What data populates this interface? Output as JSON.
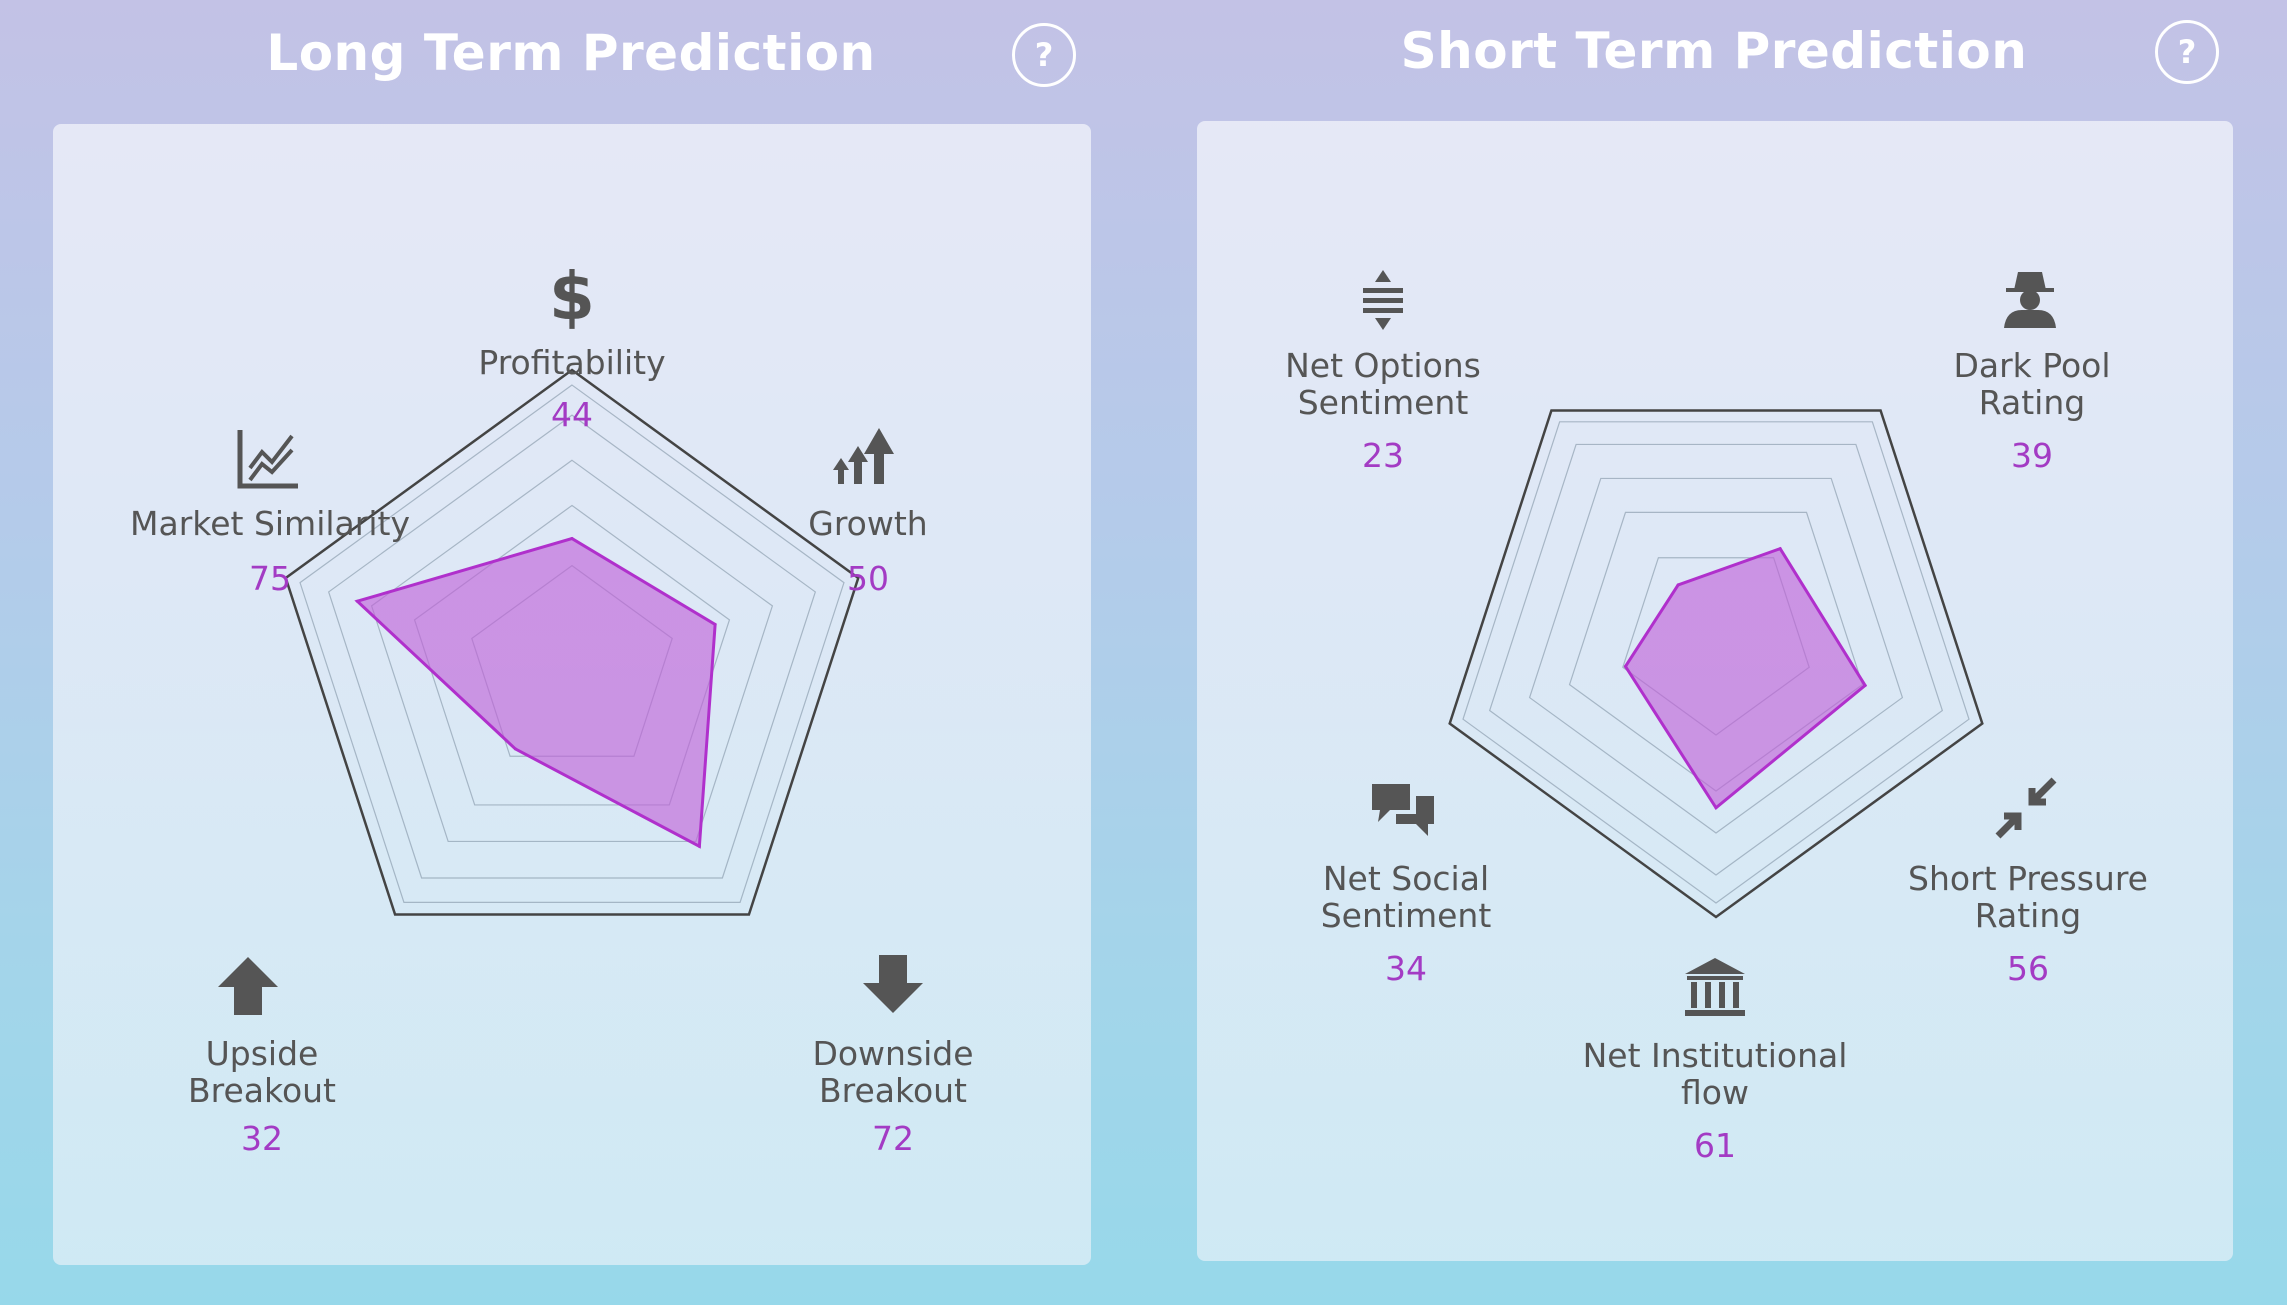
{
  "long_term": {
    "title": "Long Term Prediction",
    "help_label": "?"
  },
  "short_term": {
    "title": "Short Term Prediction",
    "help_label": "?"
  },
  "colors": {
    "fill": "#c060d8",
    "stroke": "#b030cc",
    "value_text": "#a33bc4",
    "label_text": "#555555",
    "grid": "#444444"
  },
  "chart_data": [
    {
      "type": "radar",
      "title": "Long Term Prediction",
      "range": [
        0,
        100
      ],
      "axes": [
        {
          "label": [
            "Profitability"
          ],
          "value": 44,
          "icon": "dollar-icon"
        },
        {
          "label": [
            "Growth"
          ],
          "value": 50,
          "icon": "growth-arrows-icon"
        },
        {
          "label": [
            "Downside",
            "Breakout"
          ],
          "value": 72,
          "icon": "arrow-down-icon"
        },
        {
          "label": [
            "Upside",
            "Breakout"
          ],
          "value": 32,
          "icon": "arrow-up-icon"
        },
        {
          "label": [
            "Market Similarity"
          ],
          "value": 75,
          "icon": "line-chart-icon"
        }
      ]
    },
    {
      "type": "radar",
      "title": "Short Term Prediction",
      "range": [
        0,
        100
      ],
      "axes": [
        {
          "label": [
            "Net Options",
            "Sentiment"
          ],
          "value": 23,
          "icon": "options-arrows-icon"
        },
        {
          "label": [
            "Dark Pool",
            "Rating"
          ],
          "value": 39,
          "icon": "spy-icon"
        },
        {
          "label": [
            "Short Pressure",
            "Rating"
          ],
          "value": 56,
          "icon": "compress-arrows-icon"
        },
        {
          "label": [
            "Net Institutional",
            "flow"
          ],
          "value": 61,
          "icon": "bank-icon"
        },
        {
          "label": [
            "Net Social",
            "Sentiment"
          ],
          "value": 34,
          "icon": "chat-bubbles-icon"
        }
      ]
    }
  ]
}
